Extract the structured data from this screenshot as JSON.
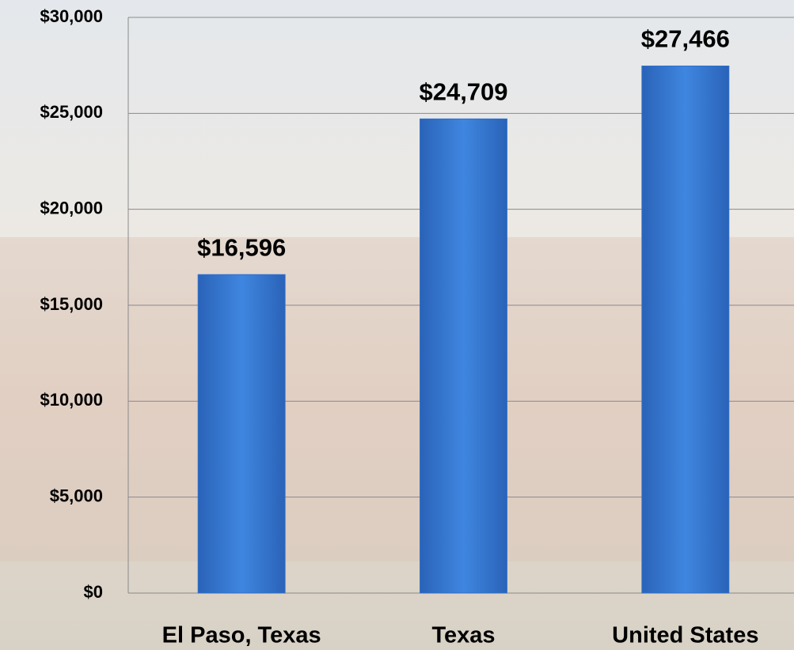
{
  "chart_data": {
    "type": "bar",
    "categories": [
      "El Paso, Texas",
      "Texas",
      "United States"
    ],
    "values": [
      16596,
      24709,
      27466
    ],
    "value_labels": [
      "$16,596",
      "$24,709",
      "$27,466"
    ],
    "color": "#2f6fcb",
    "ylim": [
      0,
      30000
    ],
    "yticks": [
      {
        "value": 0,
        "label": "$0"
      },
      {
        "value": 5000,
        "label": "$5,000"
      },
      {
        "value": 10000,
        "label": "$10,000"
      },
      {
        "value": 15000,
        "label": "$15,000"
      },
      {
        "value": 20000,
        "label": "$20,000"
      },
      {
        "value": 25000,
        "label": "$25,000"
      },
      {
        "value": 30000,
        "label": "$30,000"
      }
    ],
    "grid": true
  }
}
